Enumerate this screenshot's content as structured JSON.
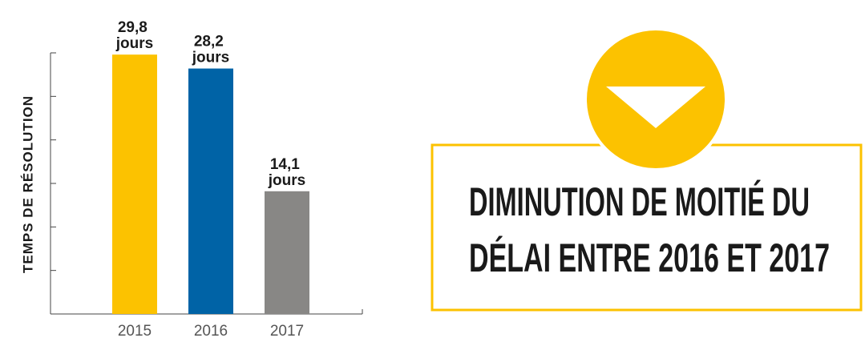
{
  "chart_data": {
    "type": "bar",
    "y_label": "TEMPS DE RÉSOLUTION",
    "categories": [
      "2015",
      "2016",
      "2017"
    ],
    "values": [
      29.8,
      28.2,
      14.1
    ],
    "value_labels": [
      "29,8 jours",
      "28,2 jours",
      "14,1 jours"
    ],
    "colors": [
      "#fcc200",
      "#0063a6",
      "#888785"
    ],
    "ylim": [
      0,
      30
    ],
    "yticks": [
      0,
      5,
      10,
      15,
      20,
      25,
      30
    ],
    "annotation": [
      "DIMINUTION DE MOITIÉ DU",
      "DÉLAI ENTRE 2016 ET 2017"
    ]
  }
}
